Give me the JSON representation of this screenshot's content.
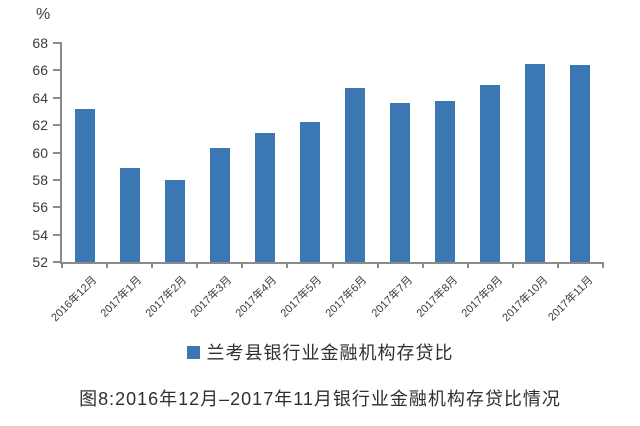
{
  "figure": {
    "caption": "图8:2016年12月–2017年11月银行业金融机构存贷比情况"
  },
  "chart_data": {
    "type": "bar",
    "title": "",
    "xlabel": "",
    "ylabel": "%",
    "categories": [
      "2016年12月",
      "2017年1月",
      "2017年2月",
      "2017年3月",
      "2017年4月",
      "2017年5月",
      "2017年6月",
      "2017年7月",
      "2017年8月",
      "2017年9月",
      "2017年10月",
      "2017年11月"
    ],
    "series": [
      {
        "name": "兰考县银行业金融机构存贷比",
        "values": [
          63.2,
          58.9,
          58.0,
          60.3,
          61.4,
          62.2,
          64.7,
          63.6,
          63.8,
          64.9,
          66.5,
          66.4
        ]
      }
    ],
    "ylim": [
      52,
      68
    ],
    "ytick_step": 2,
    "grid": false,
    "legend_position": "bottom",
    "bar_color": "#3B77B2",
    "axis_color": "#8a8a8a",
    "text_color": "#3c3c3c"
  }
}
